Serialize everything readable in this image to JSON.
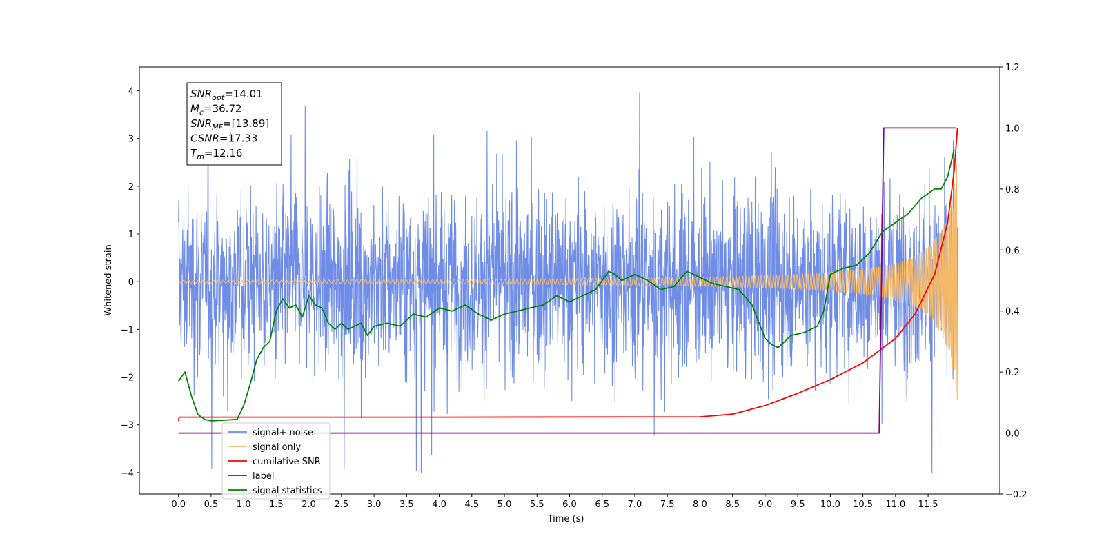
{
  "chart_data": {
    "type": "line",
    "xlabel": "Time (s)",
    "ylabel": "Whitened strain",
    "xlim": [
      -0.6,
      12.6
    ],
    "ylim": [
      -4.45,
      4.5
    ],
    "ylim_right": [
      -0.2,
      1.2
    ],
    "x_ticks": [
      "0.0",
      "0.5",
      "1.0",
      "1.5",
      "2.0",
      "2.5",
      "3.0",
      "3.5",
      "4.0",
      "4.5",
      "5.0",
      "5.5",
      "6.0",
      "6.5",
      "7.0",
      "7.5",
      "8.0",
      "8.5",
      "9.0",
      "9.5",
      "10.0",
      "10.5",
      "11.0",
      "11.5"
    ],
    "y_ticks_left": [
      "4",
      "3",
      "2",
      "1",
      "0",
      "−1",
      "−2",
      "−3",
      "−4"
    ],
    "y_ticks_right": [
      "1.2",
      "1.0",
      "0.8",
      "0.6",
      "0.4",
      "0.2",
      "0.0",
      "−0.2"
    ],
    "grid": false,
    "legend_position": "lower-left",
    "annotation": [
      {
        "base": "SNR",
        "sub": "opt",
        "value": "=14.01"
      },
      {
        "base": "M",
        "sub": "c",
        "value": "=36.72"
      },
      {
        "base": "SNR",
        "sub": "MF",
        "value": "=[13.89]"
      },
      {
        "base": "CSNR",
        "sub": "",
        "value": "=17.33"
      },
      {
        "base": "T",
        "sub": "m",
        "value": "=12.16"
      }
    ],
    "series": [
      {
        "name": "signal+ noise",
        "color": "#6f8de6",
        "axis": "left",
        "kind": "noise",
        "time_range": [
          0.0,
          11.95
        ],
        "center": 0.0,
        "typical_amplitude": 1.2,
        "peak_range": [
          -4.0,
          3.95
        ]
      },
      {
        "name": "signal only",
        "color": "#f5b96a",
        "axis": "left",
        "kind": "chirp",
        "time_range": [
          0.0,
          11.95
        ],
        "final_amplitude": 2.6,
        "merger_time": 12.16
      },
      {
        "name": "cumilative SNR",
        "color": "#ff0000",
        "axis": "right",
        "x": [
          0.0,
          0.01,
          4.0,
          8.0,
          8.5,
          9.0,
          9.5,
          10.0,
          10.5,
          11.0,
          11.3,
          11.6,
          11.8,
          11.9,
          11.95
        ],
        "y": [
          0.04,
          0.052,
          0.052,
          0.053,
          0.062,
          0.09,
          0.13,
          0.175,
          0.23,
          0.31,
          0.39,
          0.52,
          0.69,
          0.86,
          1.0
        ]
      },
      {
        "name": "label",
        "color": "#800080",
        "axis": "right",
        "x": [
          0.0,
          10.75,
          10.82,
          11.93
        ],
        "y": [
          0.0,
          0.0,
          1.0,
          1.0
        ]
      },
      {
        "name": "signal statistics",
        "color": "#008000",
        "axis": "right",
        "x": [
          0.0,
          0.1,
          0.2,
          0.3,
          0.4,
          0.5,
          0.7,
          0.9,
          1.0,
          1.1,
          1.2,
          1.3,
          1.4,
          1.5,
          1.6,
          1.7,
          1.8,
          1.9,
          2.0,
          2.1,
          2.2,
          2.3,
          2.4,
          2.5,
          2.6,
          2.7,
          2.8,
          2.9,
          3.0,
          3.2,
          3.4,
          3.6,
          3.8,
          4.0,
          4.2,
          4.4,
          4.6,
          4.8,
          5.0,
          5.2,
          5.4,
          5.6,
          5.8,
          6.0,
          6.2,
          6.4,
          6.5,
          6.6,
          6.7,
          6.8,
          7.0,
          7.2,
          7.4,
          7.6,
          7.8,
          8.0,
          8.2,
          8.4,
          8.6,
          8.8,
          9.0,
          9.1,
          9.2,
          9.3,
          9.4,
          9.6,
          9.8,
          9.9,
          10.0,
          10.2,
          10.4,
          10.6,
          10.8,
          11.0,
          11.2,
          11.4,
          11.6,
          11.7,
          11.8,
          11.9
        ],
        "y": [
          0.17,
          0.2,
          0.12,
          0.06,
          0.045,
          0.04,
          0.042,
          0.045,
          0.09,
          0.16,
          0.24,
          0.28,
          0.3,
          0.4,
          0.44,
          0.41,
          0.42,
          0.38,
          0.45,
          0.42,
          0.41,
          0.36,
          0.34,
          0.36,
          0.34,
          0.35,
          0.36,
          0.32,
          0.35,
          0.36,
          0.35,
          0.39,
          0.38,
          0.41,
          0.4,
          0.42,
          0.39,
          0.37,
          0.39,
          0.4,
          0.41,
          0.42,
          0.45,
          0.43,
          0.45,
          0.47,
          0.5,
          0.53,
          0.52,
          0.5,
          0.52,
          0.5,
          0.47,
          0.48,
          0.53,
          0.51,
          0.49,
          0.48,
          0.47,
          0.42,
          0.31,
          0.29,
          0.28,
          0.3,
          0.32,
          0.33,
          0.35,
          0.4,
          0.52,
          0.54,
          0.55,
          0.59,
          0.66,
          0.69,
          0.72,
          0.77,
          0.8,
          0.8,
          0.84,
          0.93
        ]
      }
    ]
  }
}
